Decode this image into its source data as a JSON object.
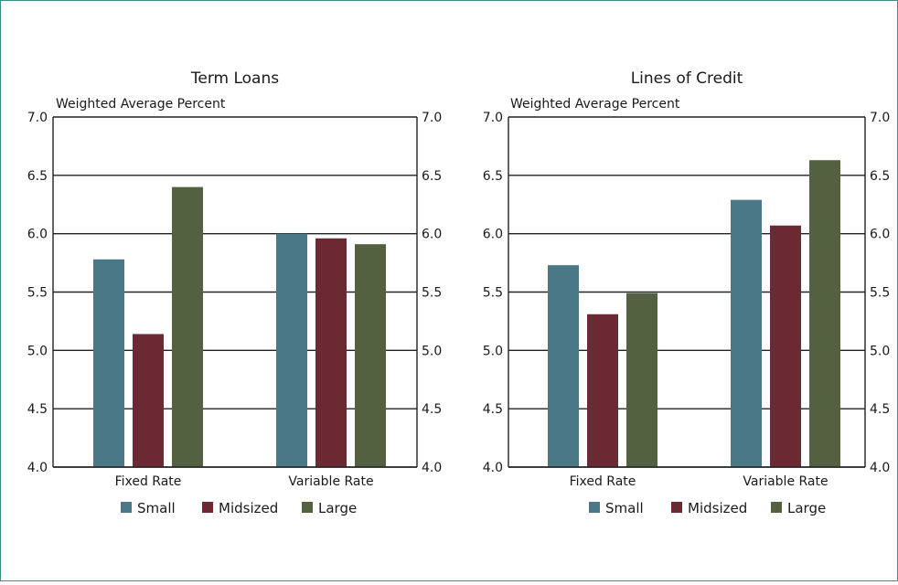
{
  "chart_data": [
    {
      "type": "bar",
      "title": "Term Loans",
      "ylabel": "Weighted Average Percent",
      "xlabel": "",
      "categories": [
        "Fixed Rate",
        "Variable Rate"
      ],
      "series": [
        {
          "name": "Small",
          "color": "#4a7886",
          "values": [
            5.78,
            6.0
          ]
        },
        {
          "name": "Midsized",
          "color": "#6b2a33",
          "values": [
            5.14,
            5.96
          ]
        },
        {
          "name": "Large",
          "color": "#546140",
          "values": [
            6.4,
            5.91
          ]
        }
      ],
      "ylim": [
        4.0,
        7.0
      ],
      "yticks": [
        "4.0",
        "4.5",
        "5.0",
        "5.5",
        "6.0",
        "6.5",
        "7.0"
      ],
      "grid": true,
      "legend_position": "bottom"
    },
    {
      "type": "bar",
      "title": "Lines of Credit",
      "ylabel": "Weighted Average Percent",
      "xlabel": "",
      "categories": [
        "Fixed Rate",
        "Variable Rate"
      ],
      "series": [
        {
          "name": "Small",
          "color": "#4a7886",
          "values": [
            5.73,
            6.29
          ]
        },
        {
          "name": "Midsized",
          "color": "#6b2a33",
          "values": [
            5.31,
            6.07
          ]
        },
        {
          "name": "Large",
          "color": "#546140",
          "values": [
            5.49,
            6.63
          ]
        }
      ],
      "ylim": [
        4.0,
        7.0
      ],
      "yticks": [
        "4.0",
        "4.5",
        "5.0",
        "5.5",
        "6.0",
        "6.5",
        "7.0"
      ],
      "grid": true,
      "legend_position": "bottom"
    }
  ]
}
